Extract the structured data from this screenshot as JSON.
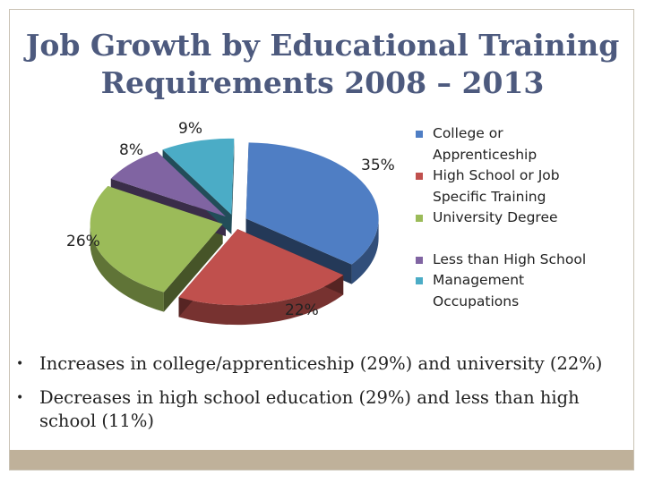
{
  "title_line1": "Job Growth by Educational Training",
  "title_line2": "Requirements 2008 – 2013",
  "chart_data": {
    "type": "pie",
    "title": "",
    "slices": [
      {
        "name": "College or Apprenticeship",
        "value": 35,
        "label": "35%",
        "color": "#4f7ec4"
      },
      {
        "name": "High School or Job Specific Training",
        "value": 22,
        "label": "22%",
        "color": "#c0504d"
      },
      {
        "name": "University Degree",
        "value": 26,
        "label": "26%",
        "color": "#9bbb59"
      },
      {
        "name": "Less than High School",
        "value": 8,
        "label": "8%",
        "color": "#8064a2"
      },
      {
        "name": "Management Occupations",
        "value": 9,
        "label": "9%",
        "color": "#4bacc6"
      }
    ],
    "legend_position": "right"
  },
  "legend": [
    {
      "text": "College or Apprenticeship",
      "color": "#4f7ec4"
    },
    {
      "text": "High School or Job Specific Training",
      "color": "#c0504d"
    },
    {
      "text": "University Degree",
      "color": "#9bbb59"
    },
    {
      "text": "Less than High School",
      "color": "#8064a2"
    },
    {
      "text": "Management Occupations",
      "color": "#4bacc6"
    }
  ],
  "bullets": [
    "Increases in college/apprenticeship (29%) and university (22%)",
    "Decreases in high school education (29%) and less than high school (11%)"
  ]
}
